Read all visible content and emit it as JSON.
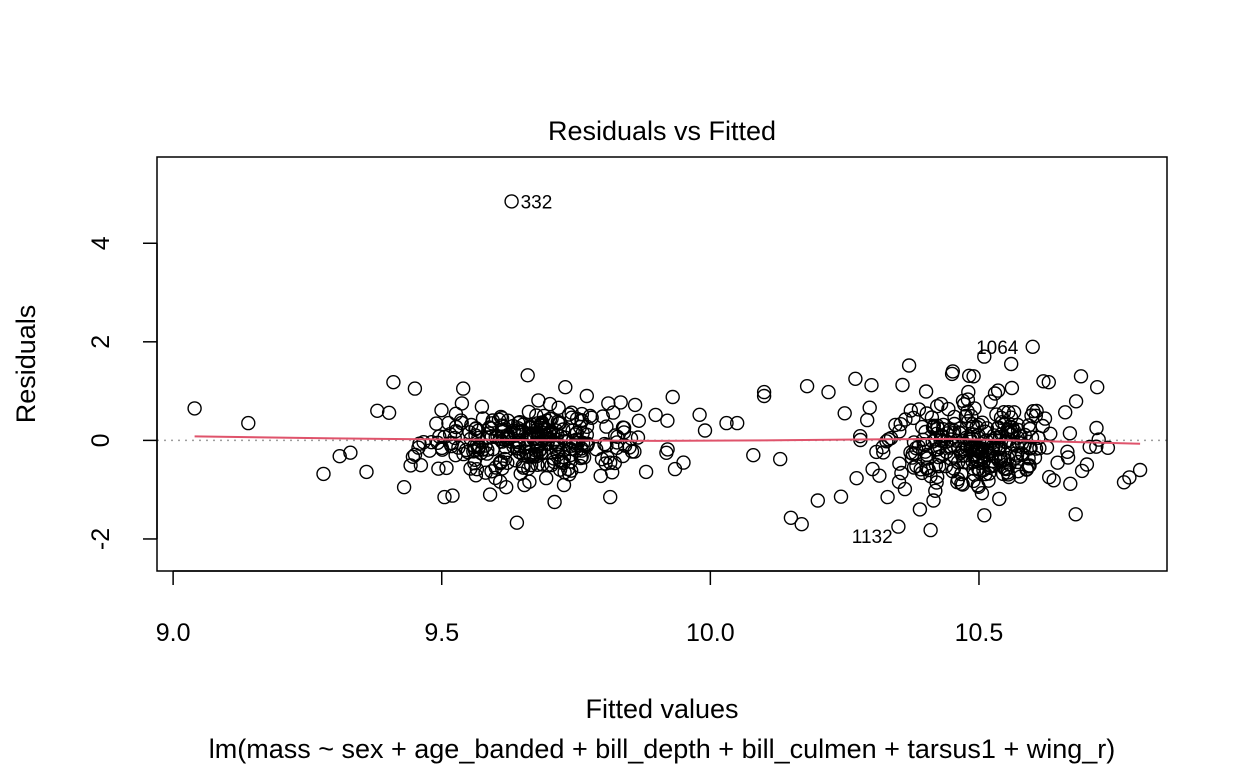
{
  "chart_data": {
    "type": "scatter",
    "title": "Residuals vs Fitted",
    "xlabel": "Fitted values",
    "ylabel": "Residuals",
    "subtitle": "lm(mass ~ sex + age_banded + bill_depth + bill_culmen + tarsus1 + wing_r)",
    "xlim": [
      8.97,
      10.85
    ],
    "ylim": [
      -2.65,
      5.75
    ],
    "x_ticks": [
      {
        "value": 9.0,
        "label": "9.0"
      },
      {
        "value": 9.5,
        "label": "9.5"
      },
      {
        "value": 10.0,
        "label": "10.0"
      },
      {
        "value": 10.5,
        "label": "10.5"
      }
    ],
    "y_ticks": [
      {
        "value": -2,
        "label": "-2"
      },
      {
        "value": 0,
        "label": "0"
      },
      {
        "value": 2,
        "label": "2"
      },
      {
        "value": 4,
        "label": "4"
      }
    ],
    "reference_line": {
      "y": 0,
      "style": "dotted",
      "color": "#9e9e9e"
    },
    "smooth_line": {
      "color": "#df536b",
      "points": [
        [
          9.04,
          0.08
        ],
        [
          9.3,
          0.04
        ],
        [
          9.6,
          0.01
        ],
        [
          9.9,
          -0.01
        ],
        [
          10.1,
          0.0
        ],
        [
          10.3,
          0.02
        ],
        [
          10.45,
          0.03
        ],
        [
          10.6,
          -0.01
        ],
        [
          10.8,
          -0.07
        ]
      ]
    },
    "annotations": [
      {
        "label": "332",
        "x": 9.63,
        "y": 4.85
      },
      {
        "label": "1064",
        "x": 10.61,
        "y": 1.9
      },
      {
        "label": "1132",
        "x": 10.36,
        "y": -1.8
      }
    ],
    "point_groups": {
      "explicit": [
        [
          9.04,
          0.65
        ],
        [
          9.14,
          0.35
        ],
        [
          9.28,
          -0.68
        ],
        [
          9.31,
          -0.32
        ],
        [
          9.33,
          -0.25
        ],
        [
          9.36,
          -0.64
        ],
        [
          9.38,
          0.6
        ],
        [
          9.41,
          1.18
        ],
        [
          9.43,
          -0.95
        ],
        [
          9.45,
          1.05
        ],
        [
          9.52,
          -1.12
        ],
        [
          9.54,
          1.05
        ],
        [
          9.59,
          -1.1
        ],
        [
          9.62,
          -0.95
        ],
        [
          9.64,
          -1.67
        ],
        [
          9.66,
          1.32
        ],
        [
          9.71,
          -1.25
        ],
        [
          9.73,
          1.08
        ],
        [
          9.77,
          0.9
        ],
        [
          9.81,
          0.75
        ],
        [
          9.86,
          0.72
        ],
        [
          9.92,
          0.4
        ],
        [
          9.93,
          0.88
        ],
        [
          9.95,
          -0.45
        ],
        [
          9.98,
          0.52
        ],
        [
          9.99,
          0.2
        ],
        [
          10.03,
          0.35
        ],
        [
          10.05,
          0.35
        ],
        [
          10.08,
          -0.3
        ],
        [
          10.1,
          0.98
        ],
        [
          10.1,
          0.9
        ],
        [
          10.13,
          -0.38
        ],
        [
          10.15,
          -1.57
        ],
        [
          10.17,
          -1.7
        ],
        [
          10.18,
          1.1
        ],
        [
          10.2,
          -1.22
        ],
        [
          10.22,
          0.98
        ],
        [
          10.25,
          0.55
        ],
        [
          10.27,
          1.25
        ],
        [
          10.3,
          1.12
        ],
        [
          10.33,
          -1.15
        ],
        [
          10.35,
          -1.75
        ],
        [
          10.37,
          1.52
        ],
        [
          10.39,
          -1.4
        ],
        [
          10.41,
          -1.82
        ],
        [
          10.45,
          1.35
        ],
        [
          10.49,
          1.3
        ],
        [
          10.51,
          -1.52
        ],
        [
          10.51,
          1.7
        ],
        [
          10.56,
          1.55
        ],
        [
          10.6,
          1.9
        ],
        [
          10.62,
          1.2
        ],
        [
          10.63,
          1.18
        ],
        [
          10.67,
          -0.88
        ],
        [
          10.68,
          -1.5
        ],
        [
          10.69,
          1.3
        ],
        [
          10.72,
          1.08
        ],
        [
          10.74,
          -0.15
        ],
        [
          10.77,
          -0.85
        ],
        [
          10.78,
          -0.75
        ],
        [
          10.8,
          -0.6
        ],
        [
          9.63,
          4.85
        ]
      ],
      "clusters": [
        {
          "count": 300,
          "x_min": 9.38,
          "x_max": 9.95,
          "y_mean": -0.05,
          "y_sd": 0.34,
          "y_min": -1.15,
          "y_max": 1.2,
          "seed": 12345
        },
        {
          "count": 290,
          "x_min": 10.23,
          "x_max": 10.75,
          "y_mean": -0.05,
          "y_sd": 0.5,
          "y_min": -1.25,
          "y_max": 1.4,
          "seed": 98765
        }
      ]
    }
  }
}
